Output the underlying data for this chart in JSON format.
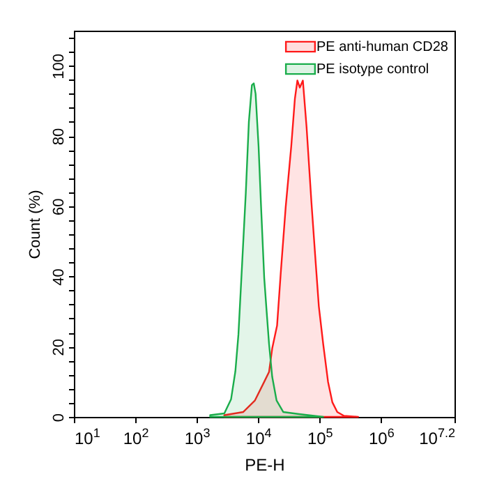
{
  "chart_data": {
    "type": "area",
    "xlabel": "PE-H",
    "ylabel": "Count (%)",
    "log": "x",
    "legend": "top right",
    "grid": false,
    "xlim": [
      10,
      15848932
    ],
    "xticks": [
      {
        "value": 10,
        "label": "10$^{1}$"
      },
      {
        "value": 100,
        "label": "10$^{2}$"
      },
      {
        "value": 1000,
        "label": "10$^{3}$"
      },
      {
        "value": 10000,
        "label": "10$^{4}$"
      },
      {
        "value": 100000,
        "label": "10$^{5}$"
      },
      {
        "value": 1000000,
        "label": "10$^{6}$"
      },
      {
        "value": 15848932,
        "label": "10$^{7.2}$"
      }
    ],
    "ylim": [
      0,
      110
    ],
    "yticks": [
      0,
      {
        "value": 4,
        "label": null
      },
      {
        "value": 8,
        "label": null
      },
      {
        "value": 12,
        "label": null
      },
      {
        "value": 16,
        "label": null
      },
      20,
      {
        "value": 24,
        "label": null
      },
      {
        "value": 28,
        "label": null
      },
      {
        "value": 32,
        "label": null
      },
      {
        "value": 36,
        "label": null
      },
      40,
      {
        "value": 44,
        "label": null
      },
      {
        "value": 48,
        "label": null
      },
      {
        "value": 52,
        "label": null
      },
      {
        "value": 56,
        "label": null
      },
      60,
      {
        "value": 64,
        "label": null
      },
      {
        "value": 68,
        "label": null
      },
      {
        "value": 72,
        "label": null
      },
      {
        "value": 76,
        "label": null
      },
      80,
      {
        "value": 84,
        "label": null
      },
      {
        "value": 88,
        "label": null
      },
      {
        "value": 92,
        "label": null
      },
      {
        "value": 96,
        "label": null
      },
      100,
      {
        "value": 104,
        "label": null
      },
      {
        "value": 108,
        "label": null
      }
    ],
    "series": [
      {
        "name": "PE anti-human CD28",
        "color": "#ff1a1a",
        "x": [
          2820,
          5750,
          8910,
          12600,
          15100,
          17000,
          20400,
          23400,
          28200,
          34700,
          39800,
          43700,
          47900,
          53700,
          61700,
          74100,
          87100,
          97700,
          115000,
          138000,
          162000,
          195000,
          251000,
          427000
        ],
        "values": [
          0.5,
          1.4,
          4.7,
          10,
          12.8,
          19.5,
          26,
          40.9,
          59.8,
          77,
          90.6,
          95.8,
          93.8,
          95.8,
          82.5,
          61,
          43.6,
          31.5,
          20.8,
          10,
          4.2,
          1.4,
          0.3,
          0
        ]
      },
      {
        "name": "PE isotype control",
        "color": "#1aad4b",
        "x": [
          1660,
          2820,
          3630,
          4270,
          4790,
          5500,
          6310,
          7080,
          7940,
          8510,
          9120,
          10200,
          11200,
          12600,
          13800,
          15100,
          17000,
          20000,
          25700,
          46800,
          115000
        ],
        "values": [
          0.5,
          1,
          5,
          13,
          23.5,
          43.6,
          63.7,
          84,
          94.5,
          95,
          92,
          77,
          59.8,
          39.6,
          30,
          20.8,
          11.4,
          4.7,
          1.4,
          0.8,
          0
        ]
      }
    ]
  }
}
